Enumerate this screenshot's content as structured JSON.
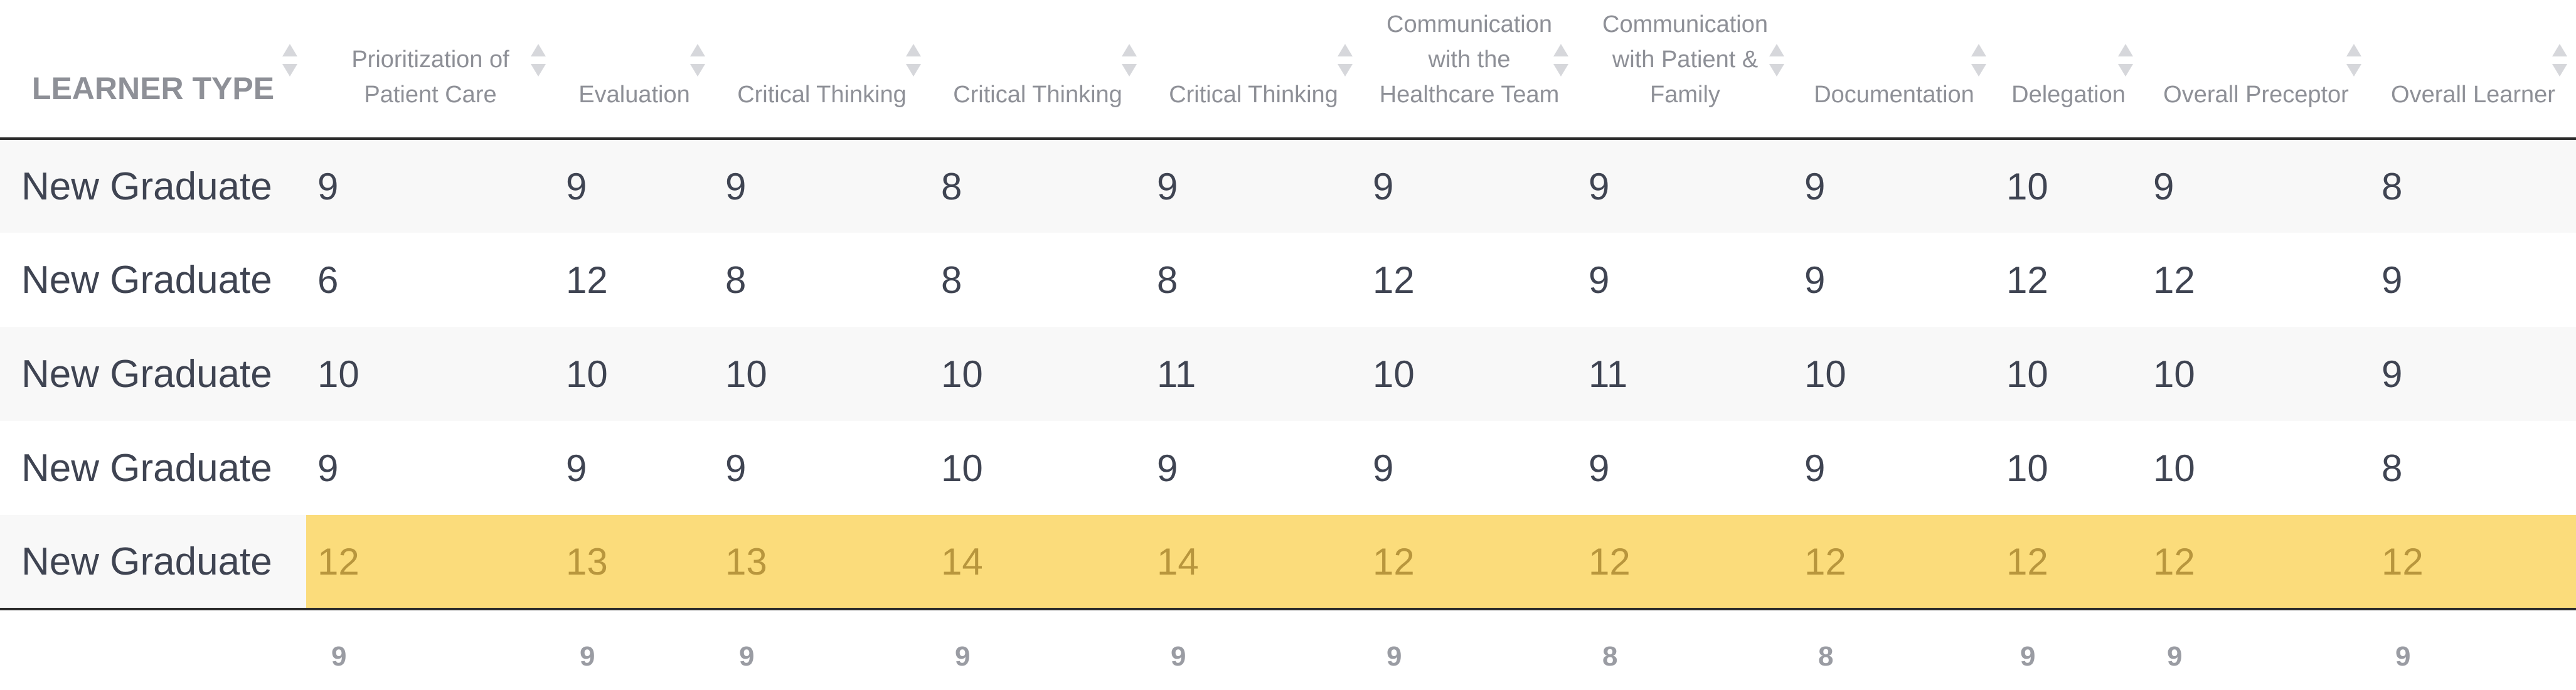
{
  "table": {
    "first_column_header": "LEARNER TYPE",
    "columns": [
      [
        "Prioritization of",
        "Patient Care"
      ],
      [
        "Evaluation"
      ],
      [
        "Critical Thinking"
      ],
      [
        "Critical Thinking"
      ],
      [
        "Critical Thinking"
      ],
      [
        "Communication",
        "with the",
        "Healthcare Team"
      ],
      [
        "Communication",
        "with Patient &",
        "Family"
      ],
      [
        "Documentation"
      ],
      [
        "Delegation"
      ],
      [
        "Overall Preceptor"
      ],
      [
        "Overall Learner"
      ]
    ],
    "rows": [
      {
        "learner_type": "New Graduate",
        "scores": [
          "9",
          "9",
          "9",
          "8",
          "9",
          "9",
          "9",
          "9",
          "10",
          "9",
          "8"
        ],
        "highlighted": false
      },
      {
        "learner_type": "New Graduate",
        "scores": [
          "6",
          "12",
          "8",
          "8",
          "8",
          "12",
          "9",
          "9",
          "12",
          "12",
          "9"
        ],
        "highlighted": false
      },
      {
        "learner_type": "New Graduate",
        "scores": [
          "10",
          "10",
          "10",
          "10",
          "11",
          "10",
          "11",
          "10",
          "10",
          "10",
          "9"
        ],
        "highlighted": false
      },
      {
        "learner_type": "New Graduate",
        "scores": [
          "9",
          "9",
          "9",
          "10",
          "9",
          "9",
          "9",
          "9",
          "10",
          "10",
          "8"
        ],
        "highlighted": false
      },
      {
        "learner_type": "New Graduate",
        "scores": [
          "12",
          "13",
          "13",
          "14",
          "14",
          "12",
          "12",
          "12",
          "12",
          "12",
          "12"
        ],
        "highlighted": true
      }
    ],
    "footer": [
      "9",
      "9",
      "9",
      "9",
      "9",
      "9",
      "8",
      "8",
      "9",
      "9",
      "9"
    ]
  },
  "colors": {
    "highlight_background": "#fbdc7b",
    "highlight_text": "#b8963d",
    "header_text": "#8e9097",
    "body_text": "#3f4452"
  }
}
